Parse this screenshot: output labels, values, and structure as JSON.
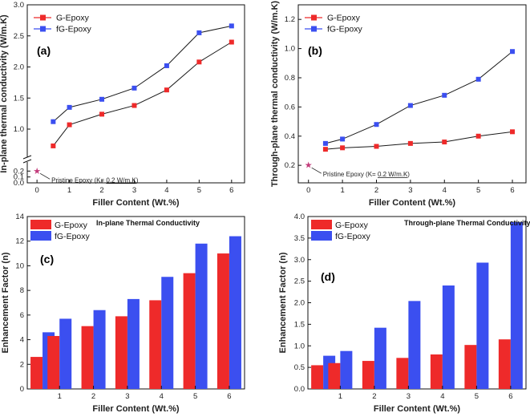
{
  "colors": {
    "g": "#ee2a2a",
    "fg": "#3b4ff0",
    "line": "#1a1a1a"
  },
  "chart_data": [
    {
      "id": "a",
      "type": "line",
      "panel_label": "(a)",
      "title": "",
      "xlabel": "Filler Content (Wt.%)",
      "ylabel": "In-plane thermal conductivity (W/m.K)",
      "xlim": [
        -0.3,
        6.4
      ],
      "ylim": [
        0,
        3.0
      ],
      "axis_break": [
        0.3,
        0.6
      ],
      "xticks": [
        "0",
        "1",
        "2",
        "3",
        "4",
        "5",
        "6"
      ],
      "yticks": [
        "0.0",
        "0.1",
        "0.2",
        "1.0",
        "1.5",
        "2.0",
        "2.5",
        "3.0"
      ],
      "legend": [
        "G-Epoxy",
        "fG-Epoxy"
      ],
      "series": [
        {
          "name": "G-Epoxy",
          "x": [
            0.5,
            1,
            2,
            3,
            4,
            5,
            6
          ],
          "values": [
            0.73,
            1.07,
            1.24,
            1.38,
            1.63,
            2.08,
            2.4
          ]
        },
        {
          "name": "fG-Epoxy",
          "x": [
            0.5,
            1,
            2,
            3,
            4,
            5,
            6
          ],
          "values": [
            1.12,
            1.35,
            1.48,
            1.66,
            2.02,
            2.55,
            2.66
          ]
        }
      ],
      "reference": {
        "x": 0,
        "value": 0.2,
        "label_pre": "Pristine Epoxy (K= ",
        "label_value": "0.2 W/m.K",
        "label_post": ")"
      }
    },
    {
      "id": "b",
      "type": "line",
      "panel_label": "(b)",
      "title": "",
      "xlabel": "Filler Content (Wt.%)",
      "ylabel": "Through-plane thermal conductivity (W/m.K)",
      "xlim": [
        -0.3,
        6.4
      ],
      "ylim": [
        0.08,
        1.3
      ],
      "xticks": [
        "0",
        "1",
        "2",
        "3",
        "4",
        "5",
        "6"
      ],
      "yticks": [
        "0.2",
        "0.4",
        "0.6",
        "0.8",
        "1.0",
        "1.2"
      ],
      "legend": [
        "G-Epoxy",
        "fG-Epoxy"
      ],
      "series": [
        {
          "name": "G-Epoxy",
          "x": [
            0.5,
            1,
            2,
            3,
            4,
            5,
            6
          ],
          "values": [
            0.31,
            0.32,
            0.33,
            0.35,
            0.36,
            0.4,
            0.43
          ]
        },
        {
          "name": "fG-Epoxy",
          "x": [
            0.5,
            1,
            2,
            3,
            4,
            5,
            6
          ],
          "values": [
            0.35,
            0.38,
            0.48,
            0.61,
            0.68,
            0.79,
            0.98
          ]
        }
      ],
      "reference": {
        "x": 0,
        "value": 0.2,
        "label_pre": "Pristine Epoxy (K= ",
        "label_value": "0.2 W/m.K",
        "label_post": ")"
      }
    },
    {
      "id": "c",
      "type": "bar",
      "panel_label": "(c)",
      "title": "In-plane Thermal Conductivity",
      "xlabel": "Filler Content (Wt.%)",
      "ylabel": "Enhancement Factor (n)",
      "ylim": [
        0,
        14
      ],
      "xticks": [
        "1",
        "2",
        "3",
        "4",
        "5",
        "6"
      ],
      "yticks": [
        "0",
        "2",
        "4",
        "6",
        "8",
        "10",
        "12",
        "14"
      ],
      "legend": [
        "G-Epoxy",
        "fG-Epoxy"
      ],
      "categories": [
        "0.5",
        "1",
        "2",
        "3",
        "4",
        "5",
        "6"
      ],
      "series": [
        {
          "name": "G-Epoxy",
          "values": [
            2.6,
            4.3,
            5.1,
            5.9,
            7.2,
            9.4,
            11.0
          ]
        },
        {
          "name": "fG-Epoxy",
          "values": [
            4.6,
            5.7,
            6.4,
            7.3,
            9.1,
            11.8,
            12.4
          ]
        }
      ]
    },
    {
      "id": "d",
      "type": "bar",
      "panel_label": "(d)",
      "title": "Through-plane Thermal Conductivity",
      "xlabel": "Filler Content (Wt.%)",
      "ylabel": "Enhancement Factor (n)",
      "ylim": [
        0,
        4.0
      ],
      "xticks": [
        "1",
        "2",
        "3",
        "4",
        "5",
        "6"
      ],
      "yticks": [
        "0.0",
        "0.5",
        "1.0",
        "1.5",
        "2.0",
        "2.5",
        "3.0",
        "3.5",
        "4.0"
      ],
      "legend": [
        "G-Epoxy",
        "fG-Epoxy"
      ],
      "categories": [
        "0.5",
        "1",
        "2",
        "3",
        "4",
        "5",
        "6"
      ],
      "series": [
        {
          "name": "G-Epoxy",
          "values": [
            0.55,
            0.6,
            0.65,
            0.72,
            0.8,
            1.02,
            1.15
          ]
        },
        {
          "name": "fG-Epoxy",
          "values": [
            0.77,
            0.88,
            1.42,
            2.04,
            2.4,
            2.93,
            3.87
          ]
        }
      ]
    }
  ]
}
